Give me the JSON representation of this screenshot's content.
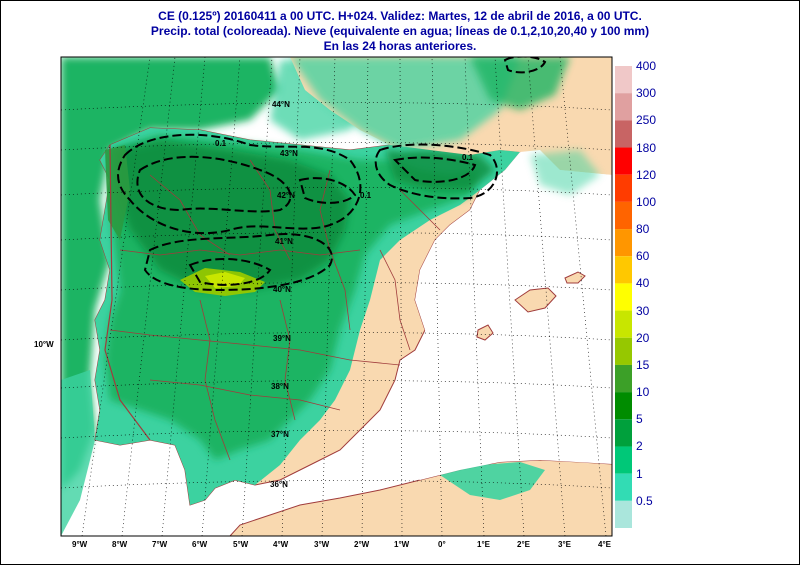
{
  "title": {
    "line1": "CE (0.125º) 20160411 a 00 UTC.  H+024. Validez: Martes, 12 de abril de 2016,  a  00 UTC.",
    "line2": "Precip. total (coloreada). Nieve (equivalente en agua; líneas de 0.1,2,10,20,40 y 100 mm)",
    "line3": "En las 24 horas anteriores."
  },
  "lon_labels": [
    "9°W",
    "8°W",
    "7°W",
    "6°W",
    "5°W",
    "4°W",
    "3°W",
    "2°W",
    "1°W",
    "0°",
    "1°E",
    "2°E",
    "3°E",
    "4°E"
  ],
  "lat_labels": [
    "44°N",
    "43°N",
    "42°N",
    "41°N",
    "40°N",
    "39°N",
    "38°N",
    "37°N",
    "36°N"
  ],
  "side_label": "10°W",
  "contour_labels": [
    "0.1",
    "0.1",
    "0.1"
  ],
  "legend": [
    {
      "label": "400",
      "color": "#f0c8c8"
    },
    {
      "label": "300",
      "color": "#e0a0a0"
    },
    {
      "label": "250",
      "color": "#c86464"
    },
    {
      "label": "180",
      "color": "#ff0000"
    },
    {
      "label": "120",
      "color": "#ff3c00"
    },
    {
      "label": "100",
      "color": "#ff6400"
    },
    {
      "label": "80",
      "color": "#ff9600"
    },
    {
      "label": "60",
      "color": "#ffc800"
    },
    {
      "label": "40",
      "color": "#ffff00"
    },
    {
      "label": "30",
      "color": "#c8e600"
    },
    {
      "label": "20",
      "color": "#96c800"
    },
    {
      "label": "15",
      "color": "#3ca028"
    },
    {
      "label": "10",
      "color": "#008c00"
    },
    {
      "label": "5",
      "color": "#00a03c"
    },
    {
      "label": "2",
      "color": "#00c878"
    },
    {
      "label": "1",
      "color": "#32dcb4"
    },
    {
      "label": "0.5",
      "color": "#aae6dc"
    }
  ],
  "colors": {
    "sea": "#ffffff",
    "dry_land": "#f9d9b0",
    "light_precip": "#3cd2a0",
    "moderate_precip": "#1eb464",
    "heavy_precip": "#0a8c3c",
    "border": "#a03c3c",
    "title": "#0000a0"
  }
}
